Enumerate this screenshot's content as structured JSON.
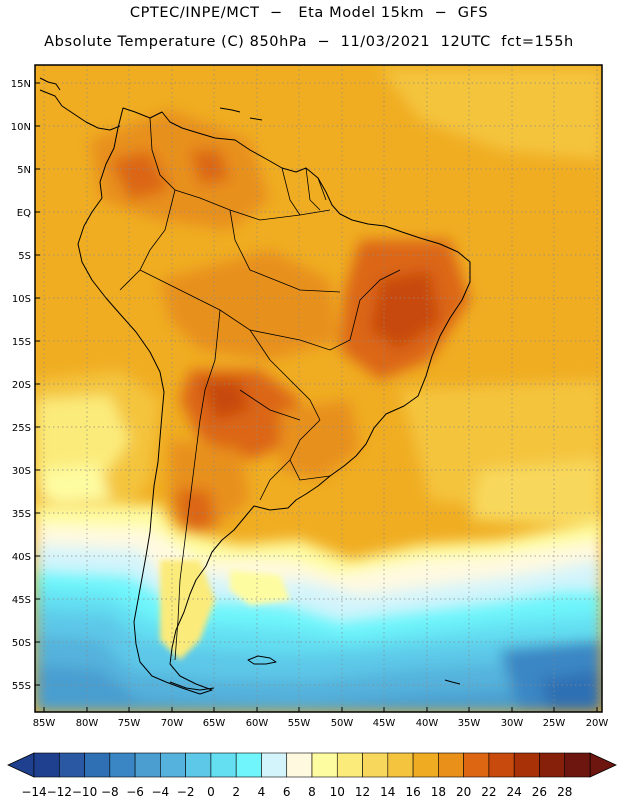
{
  "title_line1": "CPTEC/INPE/MCT  −   Eta Model 15km  −  GFS",
  "title_line2": "Absolute Temperature (C) 850hPa  −  11/03/2021  12UTC  fct=155h",
  "map": {
    "lat_labels": [
      "15N",
      "10N",
      "5N",
      "EQ",
      "5S",
      "10S",
      "15S",
      "20S",
      "25S",
      "30S",
      "35S",
      "40S",
      "45S",
      "50S",
      "55S"
    ],
    "lon_labels": [
      "85W",
      "80W",
      "75W",
      "70W",
      "65W",
      "60W",
      "55W",
      "50W",
      "45W",
      "40W",
      "35W",
      "30W",
      "25W",
      "20W"
    ]
  },
  "colorbar": {
    "labels": [
      "−14",
      "−12",
      "−10",
      "−8",
      "−6",
      "−4",
      "−2",
      "0",
      "2",
      "4",
      "6",
      "8",
      "10",
      "12",
      "14",
      "16",
      "18",
      "20",
      "22",
      "24",
      "26",
      "28"
    ],
    "colors": [
      "#1f3f8f",
      "#2a58a3",
      "#2f6fb4",
      "#3a86c4",
      "#4a9ed0",
      "#55b2dc",
      "#5dc8e8",
      "#64dff2",
      "#6ff5fb",
      "#d4f4fb",
      "#fff9e0",
      "#fefca0",
      "#fbeb7a",
      "#f8d85c",
      "#f4c43e",
      "#efac22",
      "#e8901a",
      "#dc6612",
      "#c84a0c",
      "#a83108",
      "#86200a",
      "#6d1610"
    ]
  }
}
